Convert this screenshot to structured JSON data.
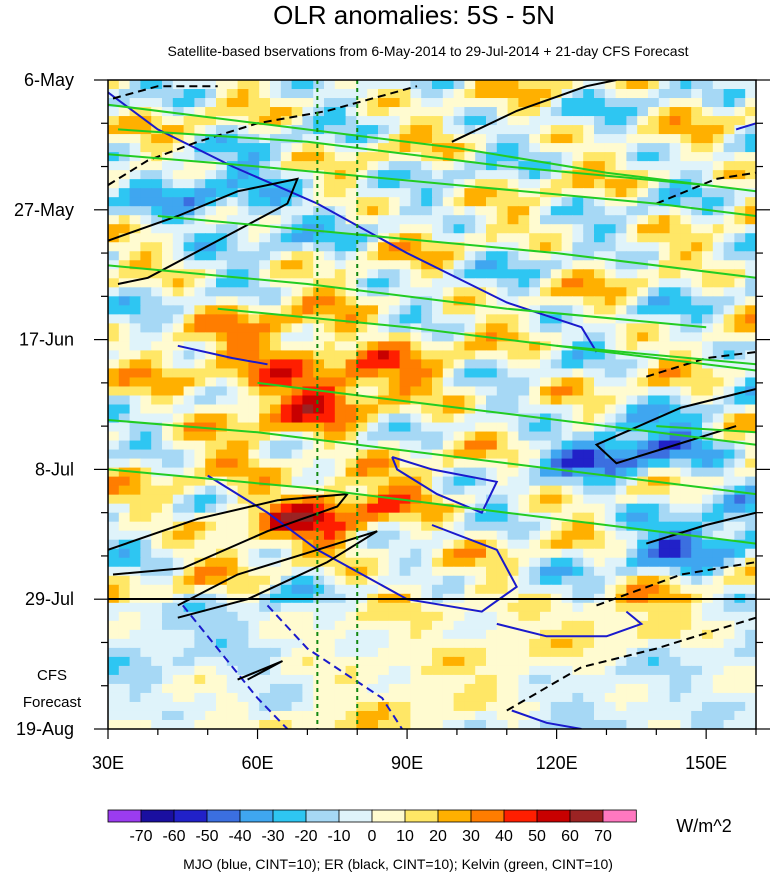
{
  "chart_data": {
    "type": "heatmap",
    "title": "OLR anomalies: 5S - 5N",
    "subtitle": "Satellite-based bservations from 6-May-2014 to 29-Jul-2014 + 21-day CFS Forecast",
    "x_ticks": [
      "30E",
      "60E",
      "90E",
      "120E",
      "150E"
    ],
    "x_tick_values": [
      30,
      60,
      90,
      120,
      150
    ],
    "xlim": [
      30,
      160
    ],
    "y_ticks": [
      "6-May",
      "27-May",
      "17-Jun",
      "8-Jul",
      "29-Jul",
      "19-Aug"
    ],
    "y_tick_days": [
      0,
      21,
      42,
      63,
      84,
      105
    ],
    "ylim_days": [
      0,
      105
    ],
    "forecast_label_line1": "CFS",
    "forecast_label_line2": "Forecast",
    "observation_end_day": 84,
    "reference_lines_lon": [
      72,
      80
    ],
    "colorbar": {
      "levels": [
        "-70",
        "-60",
        "-50",
        "-40",
        "-30",
        "-20",
        "-10",
        "0",
        "10",
        "20",
        "30",
        "40",
        "50",
        "60",
        "70"
      ],
      "colors": [
        "#9b3cf0",
        "#1a0fa0",
        "#2121c8",
        "#3b6fe0",
        "#3fa6f0",
        "#2ec6f2",
        "#a6d8f5",
        "#dff3fa",
        "#fffbd0",
        "#ffe766",
        "#ffb000",
        "#ff7d00",
        "#ff1e00",
        "#c80000",
        "#9b2323",
        "#ff78c0"
      ],
      "units": "W/m^2"
    },
    "contours": [
      {
        "name": "MJO",
        "color": "#1a1acc",
        "paths_londay": [
          [
            [
              30,
              2
            ],
            [
              40,
              8
            ],
            [
              55,
              14
            ],
            [
              72,
              20
            ],
            [
              90,
              28
            ],
            [
              110,
              36
            ],
            [
              125,
              40
            ],
            [
              128,
              44
            ]
          ],
          [
            [
              87,
              61
            ],
            [
              95,
              63
            ],
            [
              108,
              65
            ],
            [
              105,
              70
            ],
            [
              96,
              67
            ],
            [
              88,
              63
            ],
            [
              87,
              61
            ]
          ],
          [
            [
              50,
              64
            ],
            [
              62,
              70
            ],
            [
              72,
              76
            ],
            [
              90,
              84
            ],
            [
              105,
              86
            ],
            [
              112,
              82
            ],
            [
              108,
              76
            ],
            [
              95,
              72
            ]
          ],
          [
            [
              45,
              85
            ],
            [
              52,
              92
            ],
            [
              60,
              100
            ],
            [
              66,
              105
            ]
          ],
          [
            [
              62,
              85
            ],
            [
              70,
              92
            ],
            [
              85,
              100
            ],
            [
              89,
              105
            ]
          ],
          [
            [
              111,
              102
            ],
            [
              118,
              104
            ],
            [
              125,
              105
            ]
          ],
          [
            [
              108,
              88
            ],
            [
              118,
              90
            ],
            [
              130,
              90
            ],
            [
              137,
              88
            ],
            [
              134,
              86
            ]
          ],
          [
            [
              44,
              43
            ],
            [
              55,
              45
            ],
            [
              62,
              46
            ]
          ],
          [
            [
              156,
              8
            ],
            [
              160,
              7
            ]
          ]
        ],
        "dashed_from": 2
      },
      {
        "name": "ER",
        "color": "#000000",
        "paths_londay": [
          [
            [
              31,
              3
            ],
            [
              40,
              1
            ],
            [
              52,
              1
            ]
          ],
          [
            [
              30,
              17
            ],
            [
              38,
              13
            ],
            [
              48,
              10
            ],
            [
              60,
              7
            ],
            [
              74,
              5
            ],
            [
              92,
              1
            ]
          ],
          [
            [
              30,
              26
            ],
            [
              44,
              22
            ],
            [
              56,
              18
            ],
            [
              68,
              16
            ],
            [
              66,
              20
            ],
            [
              52,
              26
            ],
            [
              38,
              32
            ],
            [
              32,
              33
            ]
          ],
          [
            [
              99,
              10
            ],
            [
              112,
              5
            ],
            [
              126,
              1
            ],
            [
              132,
              0
            ]
          ],
          [
            [
              140,
              20
            ],
            [
              152,
              16
            ],
            [
              160,
              15
            ]
          ],
          [
            [
              30,
              76
            ],
            [
              48,
              71
            ],
            [
              64,
              68
            ],
            [
              78,
              67
            ],
            [
              76,
              69
            ],
            [
              62,
              73
            ],
            [
              45,
              79
            ],
            [
              31,
              80
            ]
          ],
          [
            [
              44,
              85
            ],
            [
              56,
              80
            ],
            [
              72,
              76
            ],
            [
              84,
              73
            ],
            [
              74,
              78
            ],
            [
              58,
              84
            ],
            [
              44,
              87
            ]
          ],
          [
            [
              138,
              48
            ],
            [
              150,
              45
            ],
            [
              160,
              44
            ]
          ],
          [
            [
              156,
              56
            ],
            [
              148,
              58
            ],
            [
              132,
              62
            ],
            [
              128,
              59
            ],
            [
              145,
              53
            ],
            [
              160,
              50
            ]
          ],
          [
            [
              138,
              75
            ],
            [
              150,
              72
            ],
            [
              160,
              70
            ]
          ],
          [
            [
              128,
              85
            ],
            [
              145,
              80
            ],
            [
              160,
              78
            ]
          ],
          [
            [
              56,
              97
            ],
            [
              65,
              94
            ],
            [
              58,
              97
            ]
          ],
          [
            [
              110,
              102
            ],
            [
              125,
              95
            ],
            [
              140,
              92
            ],
            [
              160,
              87
            ]
          ]
        ],
        "dashed_idx": [
          0,
          1,
          4,
          7,
          10,
          12
        ]
      },
      {
        "name": "Kelvin",
        "color": "#22cc22",
        "paths_londay": [
          [
            [
              30,
              4
            ],
            [
              60,
              7
            ],
            [
              100,
              11
            ],
            [
              130,
              15
            ],
            [
              160,
              18
            ]
          ],
          [
            [
              32,
              8
            ],
            [
              70,
              10
            ],
            [
              110,
              14
            ],
            [
              150,
              17
            ]
          ],
          [
            [
              30,
              12
            ],
            [
              60,
              14
            ],
            [
              100,
              17
            ],
            [
              140,
              20
            ],
            [
              160,
              22
            ]
          ],
          [
            [
              40,
              22
            ],
            [
              80,
              25
            ],
            [
              120,
              28
            ],
            [
              160,
              32
            ]
          ],
          [
            [
              30,
              30
            ],
            [
              70,
              33
            ],
            [
              110,
              37
            ],
            [
              150,
              40
            ]
          ],
          [
            [
              52,
              37
            ],
            [
              90,
              40
            ],
            [
              130,
              44
            ],
            [
              160,
              47
            ]
          ],
          [
            [
              60,
              49
            ],
            [
              100,
              53
            ],
            [
              140,
              57
            ],
            [
              160,
              59
            ]
          ],
          [
            [
              30,
              55
            ],
            [
              60,
              57
            ],
            [
              100,
              61
            ],
            [
              140,
              65
            ],
            [
              160,
              67
            ]
          ],
          [
            [
              30,
              63
            ],
            [
              70,
              66
            ],
            [
              110,
              70
            ],
            [
              150,
              74
            ],
            [
              160,
              75
            ]
          ],
          [
            [
              120,
              43
            ],
            [
              160,
              46
            ]
          ],
          [
            [
              140,
              56
            ],
            [
              160,
              57
            ]
          ]
        ]
      }
    ],
    "legend_note": "MJO (blue, CINT=10); ER (black, CINT=10); Kelvin (green, CINT=10)"
  }
}
